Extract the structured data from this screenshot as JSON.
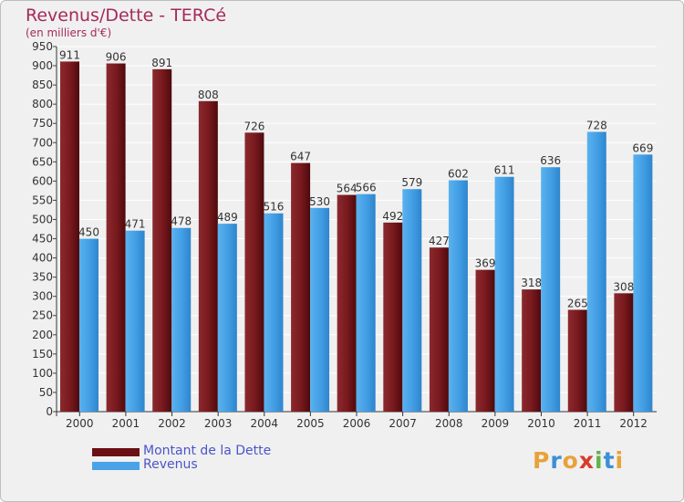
{
  "title": "Revenus/Dette - TERCé",
  "subtitle": "(en milliers d'€)",
  "chart_data": {
    "type": "bar",
    "categories": [
      "2000",
      "2001",
      "2002",
      "2003",
      "2004",
      "2005",
      "2006",
      "2007",
      "2008",
      "2009",
      "2010",
      "2011",
      "2012"
    ],
    "series": [
      {
        "name": "Montant de la Dette",
        "color": "#7a1418",
        "values": [
          911,
          906,
          891,
          808,
          726,
          647,
          564,
          492,
          427,
          369,
          318,
          265,
          308
        ]
      },
      {
        "name": "Revenus",
        "color": "#4aa3e6",
        "values": [
          450,
          471,
          478,
          489,
          516,
          530,
          566,
          579,
          602,
          611,
          636,
          728,
          669
        ]
      }
    ],
    "ylim": [
      0,
      950
    ],
    "yticks": [
      0,
      50,
      100,
      150,
      200,
      250,
      300,
      350,
      400,
      450,
      500,
      550,
      600,
      650,
      700,
      750,
      800,
      850,
      900,
      950
    ],
    "grid": true,
    "legend_position": "bottom-left"
  },
  "legend": [
    {
      "label": "Montant de la Dette",
      "color": "#6b0f14"
    },
    {
      "label": "Revenus",
      "color": "#4aa3e6"
    }
  ],
  "logo": {
    "letters": [
      "P",
      "r",
      "o",
      "x",
      "i",
      "t",
      "i"
    ],
    "colors": [
      "#e8a23a",
      "#3c8fd8",
      "#e8a23a",
      "#d93a2b",
      "#5fb34a",
      "#3c8fd8",
      "#e8a23a"
    ]
  }
}
